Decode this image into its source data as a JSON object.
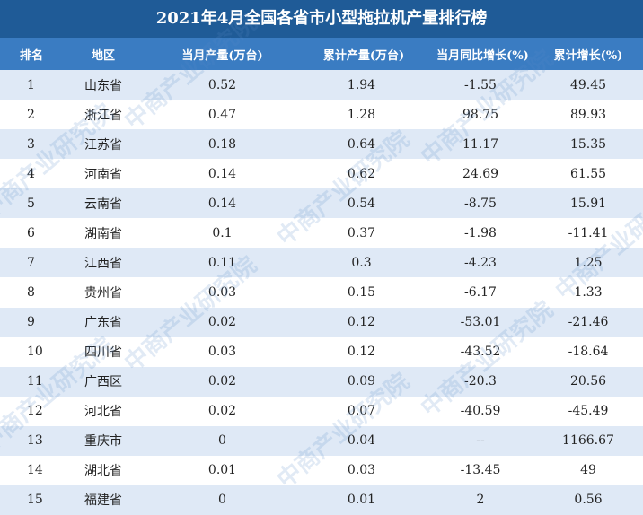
{
  "title": "2021年4月全国各省市小型拖拉机产量排行榜",
  "watermark": "中商产业研究院",
  "table": {
    "header": [
      "排名",
      "地区",
      "当月产量(万台)",
      "累计产量(万台)",
      "当月同比增长(%)",
      "累计增长(%)"
    ],
    "rows": [
      [
        "1",
        "山东省",
        "0.52",
        "1.94",
        "-1.55",
        "49.45"
      ],
      [
        "2",
        "浙江省",
        "0.47",
        "1.28",
        "98.75",
        "89.93"
      ],
      [
        "3",
        "江苏省",
        "0.18",
        "0.64",
        "11.17",
        "15.35"
      ],
      [
        "4",
        "河南省",
        "0.14",
        "0.62",
        "24.69",
        "61.55"
      ],
      [
        "5",
        "云南省",
        "0.14",
        "0.54",
        "-8.75",
        "15.91"
      ],
      [
        "6",
        "湖南省",
        "0.1",
        "0.37",
        "-1.98",
        "-11.41"
      ],
      [
        "7",
        "江西省",
        "0.11",
        "0.3",
        "-4.23",
        "1.25"
      ],
      [
        "8",
        "贵州省",
        "0.03",
        "0.15",
        "-6.17",
        "1.33"
      ],
      [
        "9",
        "广东省",
        "0.02",
        "0.12",
        "-53.01",
        "-21.46"
      ],
      [
        "10",
        "四川省",
        "0.03",
        "0.12",
        "-43.52",
        "-18.64"
      ],
      [
        "11",
        "广西区",
        "0.02",
        "0.09",
        "-20.3",
        "20.56"
      ],
      [
        "12",
        "河北省",
        "0.02",
        "0.07",
        "-40.59",
        "-45.49"
      ],
      [
        "13",
        "重庆市",
        "0",
        "0.04",
        "--",
        "1166.67"
      ],
      [
        "14",
        "湖北省",
        "0.01",
        "0.03",
        "-13.45",
        "49"
      ],
      [
        "15",
        "福建省",
        "0",
        "0.01",
        "2",
        "0.56"
      ]
    ]
  }
}
